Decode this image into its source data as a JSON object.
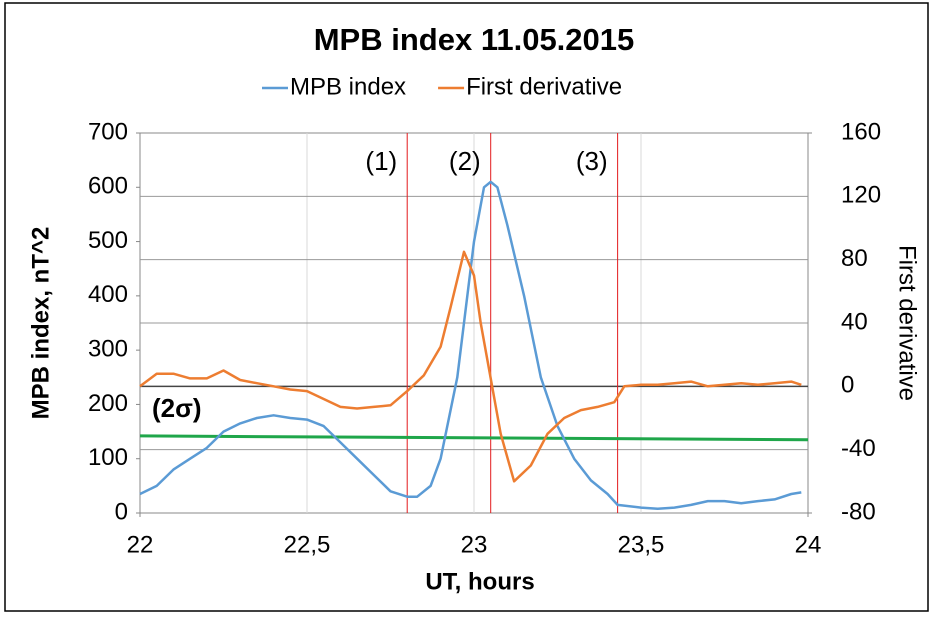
{
  "chart_data": {
    "type": "line",
    "title": "MPB index 11.05.2015",
    "xlabel": "UT, hours",
    "ylabel": "MPB index, nT^2",
    "y2label": "First derivative",
    "xlim": [
      22,
      24
    ],
    "xticks": [
      {
        "value": 22,
        "label": "22"
      },
      {
        "value": 22.5,
        "label": "22,5"
      },
      {
        "value": 23,
        "label": "23"
      },
      {
        "value": 23.5,
        "label": "23,5"
      },
      {
        "value": 24,
        "label": "24"
      }
    ],
    "ylim": [
      0,
      700
    ],
    "yticks": [
      0,
      100,
      200,
      300,
      400,
      500,
      600,
      700
    ],
    "y2lim": [
      -80,
      160
    ],
    "y2ticks": [
      -80,
      -40,
      0,
      40,
      80,
      120,
      160
    ],
    "grid": true,
    "legend": "top",
    "series": [
      {
        "name": "MPB index",
        "color": "#5b9bd5",
        "x": [
          22.0,
          22.05,
          22.1,
          22.15,
          22.2,
          22.25,
          22.3,
          22.35,
          22.4,
          22.45,
          22.5,
          22.55,
          22.6,
          22.65,
          22.7,
          22.75,
          22.8,
          22.83,
          22.87,
          22.9,
          22.95,
          23.0,
          23.03,
          23.05,
          23.07,
          23.1,
          23.15,
          23.2,
          23.25,
          23.3,
          23.35,
          23.4,
          23.43,
          23.5,
          23.55,
          23.6,
          23.65,
          23.7,
          23.75,
          23.8,
          23.85,
          23.9,
          23.95,
          23.98
        ],
        "values": [
          35,
          50,
          80,
          100,
          120,
          150,
          165,
          175,
          180,
          175,
          172,
          160,
          130,
          100,
          70,
          40,
          30,
          30,
          50,
          100,
          250,
          500,
          600,
          610,
          600,
          530,
          400,
          250,
          160,
          100,
          60,
          35,
          15,
          10,
          8,
          10,
          15,
          22,
          22,
          18,
          22,
          25,
          35,
          38
        ]
      },
      {
        "name": "First derivative",
        "color": "#ed7d31",
        "axis": "y2",
        "x": [
          22.0,
          22.05,
          22.1,
          22.15,
          22.2,
          22.25,
          22.3,
          22.35,
          22.4,
          22.45,
          22.5,
          22.55,
          22.6,
          22.65,
          22.7,
          22.75,
          22.8,
          22.85,
          22.9,
          22.93,
          22.97,
          23.0,
          23.02,
          23.05,
          23.08,
          23.12,
          23.17,
          23.22,
          23.27,
          23.32,
          23.37,
          23.42,
          23.45,
          23.5,
          23.55,
          23.6,
          23.65,
          23.7,
          23.75,
          23.8,
          23.85,
          23.9,
          23.95,
          23.98
        ],
        "values": [
          0,
          8,
          8,
          5,
          5,
          10,
          4,
          2,
          0,
          -2,
          -3,
          -8,
          -13,
          -14,
          -13,
          -12,
          -3,
          7,
          25,
          50,
          85,
          70,
          40,
          5,
          -30,
          -60,
          -50,
          -30,
          -20,
          -15,
          -13,
          -10,
          0,
          1,
          1,
          2,
          3,
          0,
          1,
          2,
          1,
          2,
          3,
          1
        ]
      }
    ],
    "threshold": {
      "label": "(2σ)",
      "color": "#1fa64a",
      "values": [
        142,
        135
      ]
    },
    "vlines": [
      {
        "x": 22.8,
        "label": "(1)",
        "color": "#e31a1c"
      },
      {
        "x": 23.05,
        "label": "(2)",
        "color": "#e31a1c"
      },
      {
        "x": 23.43,
        "label": "(3)",
        "color": "#e31a1c"
      }
    ]
  }
}
